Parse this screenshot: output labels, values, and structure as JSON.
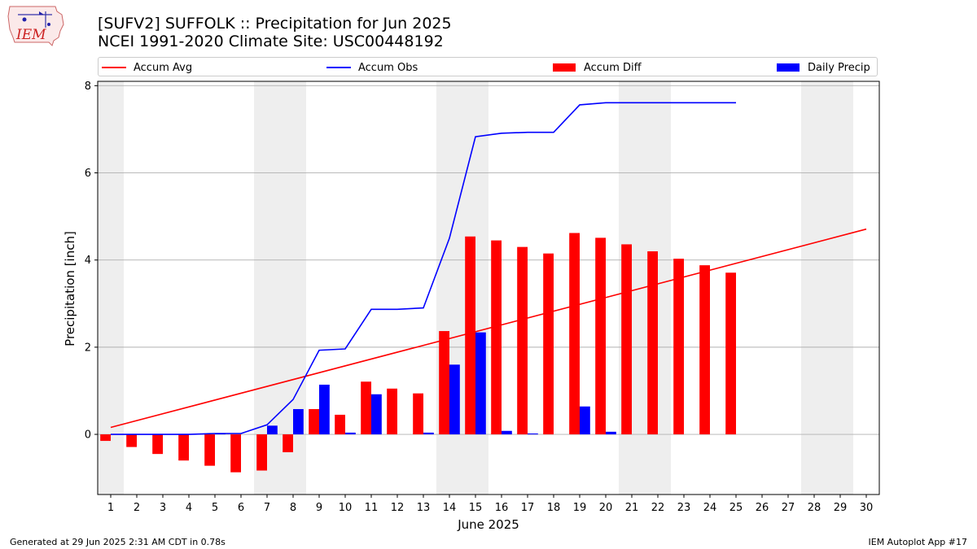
{
  "header": {
    "title_line1": "[SUFV2] SUFFOLK :: Precipitation for Jun 2025",
    "title_line2": "NCEI 1991-2020 Climate Site: USC00448192",
    "logo_text": "IEM"
  },
  "footer": {
    "left": "Generated at 29 Jun 2025 2:31 AM CDT in 0.78s",
    "right": "IEM Autoplot App #17"
  },
  "colors": {
    "avg": "#ff0000",
    "obs": "#0000ff",
    "diff": "#ff0000",
    "daily": "#0000ff",
    "weekend_band": "#eeeeee",
    "grid": "#b0b0b0"
  },
  "chart_data": {
    "type": "bar",
    "title": "[SUFV2] SUFFOLK :: Precipitation for Jun 2025",
    "subtitle": "NCEI 1991-2020 Climate Site: USC00448192",
    "xlabel": "June 2025",
    "ylabel": "Precipitation [inch]",
    "ylim": [
      -1.38,
      8.1
    ],
    "xlim": [
      0.5,
      30.5
    ],
    "yticks": [
      0,
      2,
      4,
      6,
      8
    ],
    "categories": [
      "1",
      "2",
      "3",
      "4",
      "5",
      "6",
      "7",
      "8",
      "9",
      "10",
      "11",
      "12",
      "13",
      "14",
      "15",
      "16",
      "17",
      "18",
      "19",
      "20",
      "21",
      "22",
      "23",
      "24",
      "25",
      "26",
      "27",
      "28",
      "29",
      "30"
    ],
    "grid": true,
    "legend_position": "top",
    "weekend_bands": [
      [
        0.5,
        1.5
      ],
      [
        6.5,
        8.5
      ],
      [
        13.5,
        15.5
      ],
      [
        20.5,
        22.5
      ],
      [
        27.5,
        29.5
      ]
    ],
    "series": [
      {
        "name": "Accum Avg",
        "kind": "line",
        "color": "#ff0000",
        "x": [
          1,
          30
        ],
        "values": [
          0.16,
          4.71
        ]
      },
      {
        "name": "Accum Obs",
        "kind": "line",
        "color": "#0000ff",
        "x": [
          1,
          2,
          3,
          4,
          5,
          6,
          7,
          8,
          9,
          10,
          11,
          12,
          13,
          14,
          15,
          16,
          17,
          18,
          19,
          20,
          21,
          22,
          23,
          24,
          25
        ],
        "values": [
          0.0,
          0.0,
          0.0,
          0.0,
          0.02,
          0.02,
          0.22,
          0.8,
          1.93,
          1.96,
          2.87,
          2.87,
          2.9,
          4.5,
          6.83,
          6.91,
          6.93,
          6.93,
          7.56,
          7.61,
          7.61,
          7.61,
          7.61,
          7.61,
          7.61
        ]
      },
      {
        "name": "Accum Diff",
        "kind": "bar",
        "color": "#ff0000",
        "x": [
          1,
          2,
          3,
          4,
          5,
          6,
          7,
          8,
          9,
          10,
          11,
          12,
          13,
          14,
          15,
          16,
          17,
          18,
          19,
          20,
          21,
          22,
          23,
          24,
          25
        ],
        "values": [
          -0.15,
          -0.29,
          -0.45,
          -0.6,
          -0.72,
          -0.87,
          -0.83,
          -0.41,
          0.58,
          0.45,
          1.21,
          1.05,
          0.94,
          2.37,
          4.54,
          4.45,
          4.3,
          4.15,
          4.62,
          4.51,
          4.36,
          4.2,
          4.03,
          3.88,
          3.71
        ]
      },
      {
        "name": "Daily Precip",
        "kind": "bar",
        "color": "#0000ff",
        "x": [
          1,
          2,
          3,
          4,
          5,
          6,
          7,
          8,
          9,
          10,
          11,
          12,
          13,
          14,
          15,
          16,
          17,
          18,
          19,
          20,
          21,
          22,
          23,
          24,
          25
        ],
        "values": [
          0.0,
          0.0,
          0.0,
          0.0,
          0.02,
          0.0,
          0.2,
          0.58,
          1.14,
          0.04,
          0.92,
          0.0,
          0.04,
          1.6,
          2.34,
          0.08,
          0.02,
          0.0,
          0.64,
          0.06,
          0.0,
          0.0,
          0.0,
          0.0,
          0.0
        ]
      }
    ]
  }
}
